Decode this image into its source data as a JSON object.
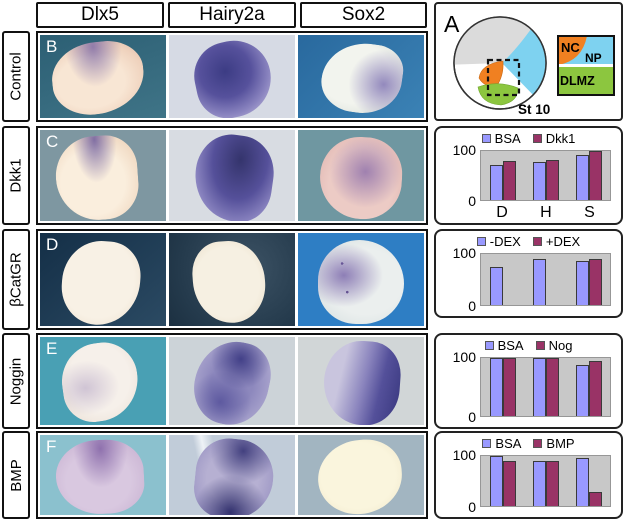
{
  "figure": {
    "column_headers": [
      {
        "label": "Dlx5"
      },
      {
        "label": "Hairy2a"
      },
      {
        "label": "Sox2"
      }
    ],
    "rows": [
      {
        "letter": "B",
        "label": "Control"
      },
      {
        "letter": "C",
        "label": "Dkk1"
      },
      {
        "letter": "D",
        "label": "βCatGR"
      },
      {
        "letter": "E",
        "label": "Noggin"
      },
      {
        "letter": "F",
        "label": "BMP"
      }
    ]
  },
  "schematic": {
    "letter": "A",
    "stage": "St 10",
    "labels": {
      "nc": "NC",
      "np": "NP",
      "dlmz": "DLMZ"
    },
    "colors": {
      "nc": "#F08021",
      "np": "#7ED2F0",
      "dlmz": "#8CC63F",
      "gray": "#DBDBDB"
    }
  },
  "chart_style": {
    "series1": "#9999FF",
    "series2": "#993366",
    "plot_bg": "#C8C8C8"
  },
  "chart_data": [
    {
      "row": "Dkk1",
      "type": "bar",
      "categories": [
        "D",
        "H",
        "S"
      ],
      "show_categories": true,
      "series": [
        {
          "name": "BSA",
          "color": "#9999FF",
          "values": [
            72,
            78,
            92
          ]
        },
        {
          "name": "Dkk1",
          "color": "#993366",
          "values": [
            80,
            82,
            100
          ]
        }
      ],
      "ylim": [
        0,
        100
      ],
      "yticks": [
        100,
        0
      ],
      "legend_position": "top",
      "grid": false
    },
    {
      "row": "βCatGR",
      "type": "bar",
      "categories": [
        "D",
        "H",
        "S"
      ],
      "show_categories": false,
      "series": [
        {
          "name": "-DEX",
          "color": "#9999FF",
          "values": [
            75,
            90,
            86
          ]
        },
        {
          "name": "+DEX",
          "color": "#993366",
          "values": [
            0,
            0,
            90
          ]
        }
      ],
      "ylim": [
        0,
        100
      ],
      "yticks": [
        100,
        0
      ],
      "legend_position": "top",
      "grid": false
    },
    {
      "row": "Noggin",
      "type": "bar",
      "categories": [
        "D",
        "H",
        "S"
      ],
      "show_categories": false,
      "series": [
        {
          "name": "BSA",
          "color": "#9999FF",
          "values": [
            100,
            100,
            88
          ]
        },
        {
          "name": "Nog",
          "color": "#993366",
          "values": [
            100,
            100,
            95
          ]
        }
      ],
      "ylim": [
        0,
        100
      ],
      "yticks": [
        100,
        0
      ],
      "legend_position": "top",
      "grid": false
    },
    {
      "row": "BMP",
      "type": "bar",
      "categories": [
        "D",
        "H",
        "S"
      ],
      "show_categories": false,
      "series": [
        {
          "name": "BSA",
          "color": "#9999FF",
          "values": [
            100,
            91,
            96
          ]
        },
        {
          "name": "BMP",
          "color": "#993366",
          "values": [
            90,
            91,
            28
          ]
        }
      ],
      "ylim": [
        0,
        100
      ],
      "yticks": [
        100,
        0
      ],
      "legend_position": "top",
      "grid": false
    }
  ]
}
